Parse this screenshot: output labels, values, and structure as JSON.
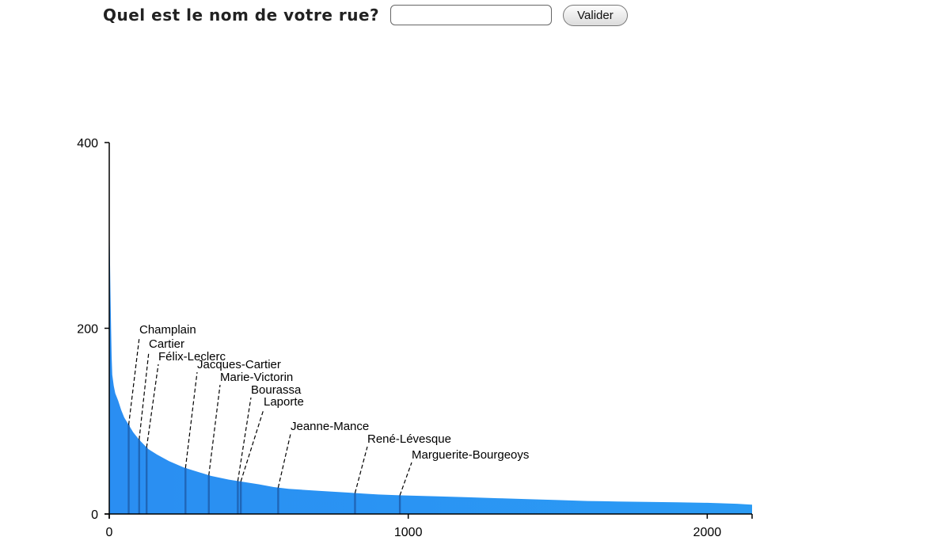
{
  "form": {
    "question": "Quel est le nom de votre rue?",
    "input_value": "",
    "button_label": "Valider"
  },
  "chart_data": {
    "type": "area",
    "title": "",
    "xlabel": "",
    "ylabel": "",
    "xlim": [
      0,
      2150
    ],
    "ylim": [
      0,
      400
    ],
    "xticks": [
      0,
      1000,
      2000
    ],
    "yticks": [
      0,
      200,
      400
    ],
    "grid": false,
    "fill_color": "#2b9bf4",
    "x": [
      0,
      2,
      4,
      6,
      8,
      10,
      15,
      20,
      30,
      40,
      50,
      65,
      80,
      100,
      130,
      160,
      200,
      250,
      300,
      340,
      400,
      440,
      500,
      550,
      600,
      700,
      800,
      850,
      900,
      980,
      1100,
      1200,
      1300,
      1400,
      1500,
      1600,
      1700,
      1800,
      1900,
      2000,
      2100,
      2150
    ],
    "y": [
      320,
      280,
      240,
      200,
      170,
      150,
      138,
      130,
      122,
      112,
      104,
      96,
      88,
      80,
      70,
      64,
      57,
      50,
      45,
      41,
      37,
      35,
      32,
      29,
      27,
      25,
      23,
      22,
      21,
      20,
      19,
      18,
      17,
      16,
      15,
      14,
      13.5,
      13,
      12.5,
      12,
      11,
      10
    ],
    "annotations": [
      {
        "label": "Champlain",
        "x": 65,
        "y": 96
      },
      {
        "label": "Cartier",
        "x": 100,
        "y": 80
      },
      {
        "label": "Félix-Leclerc",
        "x": 125,
        "y": 72
      },
      {
        "label": "Jacques-Cartier",
        "x": 255,
        "y": 50
      },
      {
        "label": "Marie-Victorin",
        "x": 333,
        "y": 43
      },
      {
        "label": "Bourassa",
        "x": 430,
        "y": 36
      },
      {
        "label": "Laporte",
        "x": 440,
        "y": 35
      },
      {
        "label": "Jeanne-Mance",
        "x": 565,
        "y": 28
      },
      {
        "label": "René-Lévesque",
        "x": 822,
        "y": 22
      },
      {
        "label": "Marguerite-Bourgeoys",
        "x": 972,
        "y": 20
      }
    ]
  }
}
